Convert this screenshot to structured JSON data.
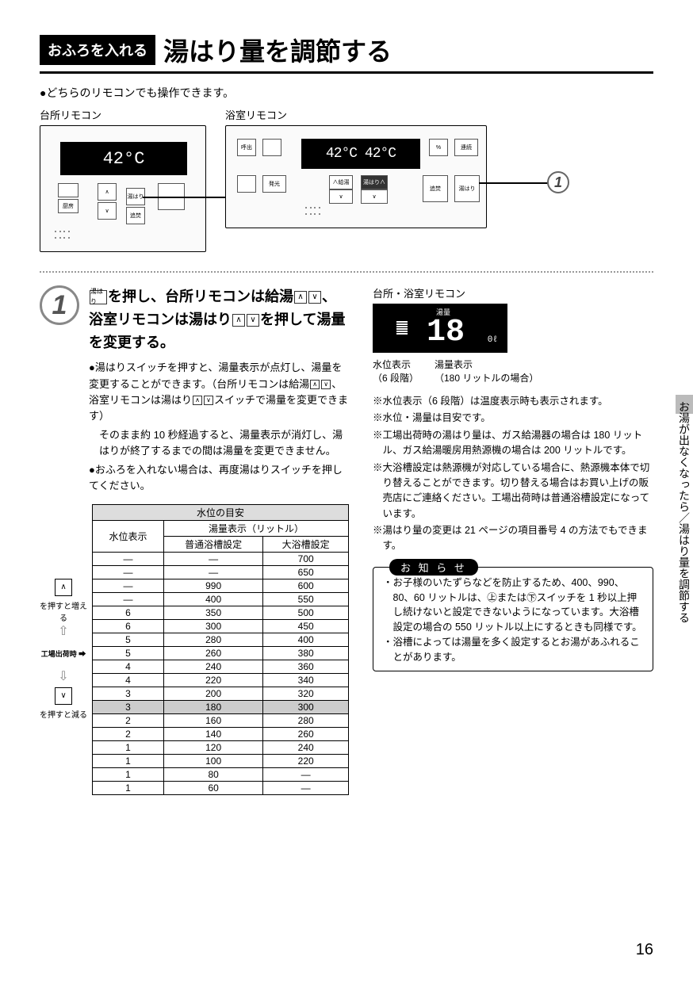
{
  "header": {
    "tag": "おふろを入れる",
    "title": "湯はり量を調節する"
  },
  "intro": "どちらのリモコンでも操作できます。",
  "remotes": {
    "kitchen": {
      "label": "台所リモコン",
      "lcd": "42°C"
    },
    "bath": {
      "label": "浴室リモコン",
      "lcd": "42°C 42°C"
    }
  },
  "step": {
    "num": "1",
    "text_parts": {
      "a": "を押し、台所リモコンは給湯",
      "b": "、浴室リモコンは湯はり",
      "c": "を押して湯量を変更する。"
    },
    "icon_yubari": "湯はり",
    "body1": "湯はりスイッチを押すと、湯量表示が点灯し、湯量を変更することができます。（台所リモコンは給湯",
    "body1b": "、浴室リモコンは湯はり",
    "body1c": "スイッチで湯量を変更できます）",
    "body2": "そのまま約 10 秒経過すると、湯量表示が消灯し、湯はりが終了するまでの間は湯量を変更できません。",
    "body3": "おふろを入れない場合は、再度湯はりスイッチを押してください。"
  },
  "table": {
    "title": "水位の目安",
    "col1": "水位表示",
    "col2_top": "湯量表示（リットル）",
    "col2a": "普通浴槽設定",
    "col2b": "大浴槽設定",
    "legend": {
      "increase": "を押すと増える",
      "factory": "工場出荷時",
      "decrease": "を押すと減る"
    },
    "rows": [
      [
        "—",
        "—",
        "700"
      ],
      [
        "—",
        "—",
        "650"
      ],
      [
        "—",
        "990",
        "600"
      ],
      [
        "—",
        "400",
        "550"
      ],
      [
        "6",
        "350",
        "500"
      ],
      [
        "6",
        "300",
        "450"
      ],
      [
        "5",
        "280",
        "400"
      ],
      [
        "5",
        "260",
        "380"
      ],
      [
        "4",
        "240",
        "360"
      ],
      [
        "4",
        "220",
        "340"
      ],
      [
        "3",
        "200",
        "320"
      ],
      [
        "3",
        "180",
        "300"
      ],
      [
        "2",
        "160",
        "280"
      ],
      [
        "2",
        "140",
        "260"
      ],
      [
        "1",
        "120",
        "240"
      ],
      [
        "1",
        "100",
        "220"
      ],
      [
        "1",
        "80",
        "—"
      ],
      [
        "1",
        "60",
        "—"
      ]
    ],
    "highlight_row": 11
  },
  "right": {
    "label": "台所・浴室リモコン",
    "lcd": {
      "label": "湯量",
      "value": "18",
      "unit": "0ℓ"
    },
    "caption_left_1": "水位表示",
    "caption_left_2": "（6 段階）",
    "caption_right_1": "湯量表示",
    "caption_right_2": "（180 リットルの場合）",
    "notes": [
      "※水位表示（6 段階）は温度表示時も表示されます。",
      "※水位・湯量は目安です。",
      "※工場出荷時の湯はり量は、ガス給湯器の場合は 180 リットル、ガス給湯暖房用熱源機の場合は 200 リットルです。",
      "※大浴槽設定は熱源機が対応している場合に、熱源機本体で切り替えることができます。切り替える場合はお買い上げの販売店にご連絡ください。工場出荷時は普通浴槽設定になっています。",
      "※湯はり量の変更は 21 ページの項目番号 4 の方法でもできます。"
    ],
    "notice": {
      "title": "お 知 ら せ",
      "items": [
        "・お子様のいたずらなどを防止するため、400、990、80、60 リットルは、㊤または㊦スイッチを 1 秒以上押し続けないと設定できないようになっています。大浴槽設定の場合の 550 リットル以上にするときも同様です。",
        "・浴槽によっては湯量を多く設定するとお湯があふれることがあります。"
      ]
    }
  },
  "side_tab": "お湯が出なくなったら／湯はり量を調節する",
  "page_num": "16",
  "colors": {
    "gray_marker": "#888888",
    "lcd_bg": "#000000",
    "highlight": "#cccccc"
  }
}
